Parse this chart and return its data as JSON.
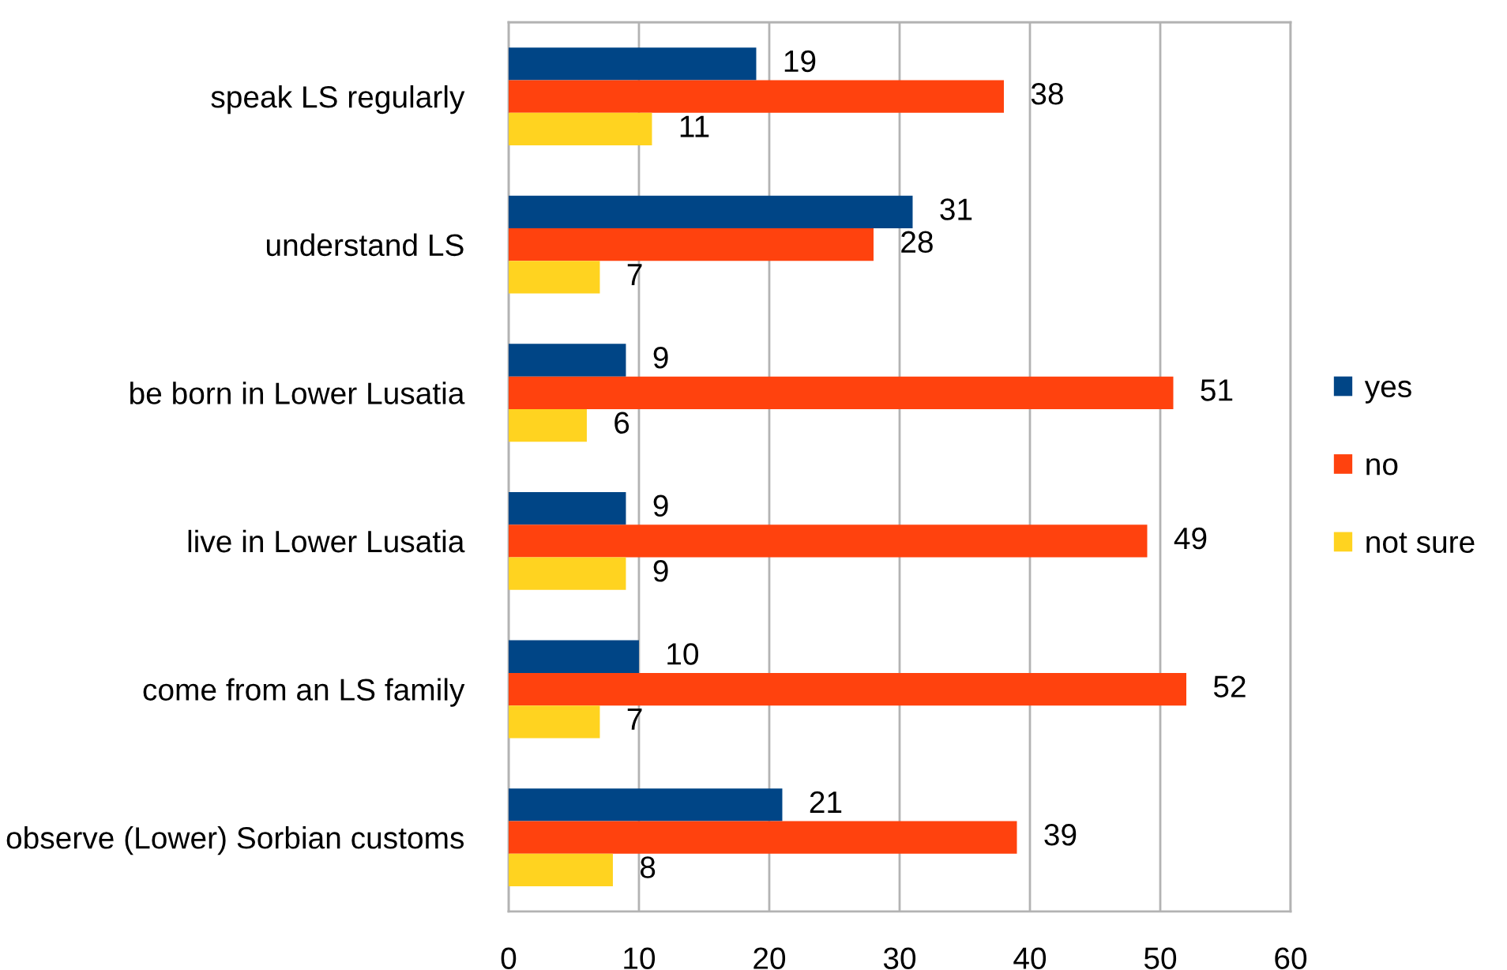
{
  "chart_data": {
    "type": "bar",
    "orientation": "horizontal",
    "categories": [
      "speak LS regularly",
      "understand LS",
      "be born in Lower Lusatia",
      "live in Lower Lusatia",
      "come from an LS family",
      "observe (Lower) Sorbian customs"
    ],
    "series": [
      {
        "name": "yes",
        "color": "#004586",
        "values": [
          19,
          31,
          9,
          9,
          10,
          21
        ]
      },
      {
        "name": "no",
        "color": "#ff420e",
        "values": [
          38,
          28,
          51,
          49,
          52,
          39
        ]
      },
      {
        "name": "not sure",
        "color": "#ffd320",
        "values": [
          11,
          7,
          6,
          9,
          7,
          8
        ]
      }
    ],
    "xlim": [
      0,
      60
    ],
    "xticks": [
      0,
      10,
      20,
      30,
      40,
      50,
      60
    ],
    "grid": "x",
    "legend": "right",
    "data_labels": true
  }
}
